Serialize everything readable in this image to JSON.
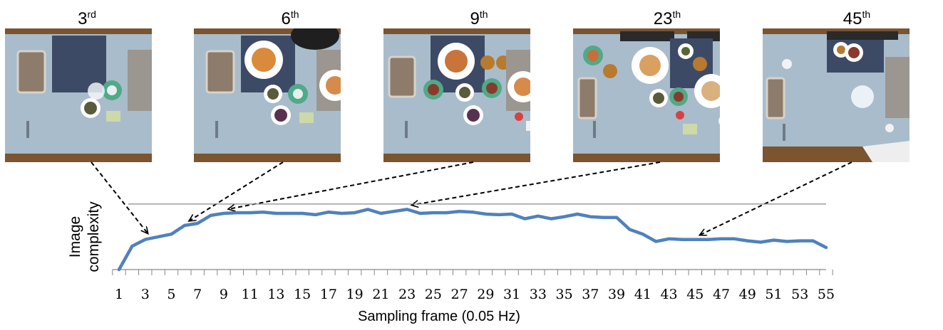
{
  "frames": [
    {
      "num": "3",
      "suffix": "rd",
      "frame": 3
    },
    {
      "num": "6",
      "suffix": "th",
      "frame": 6
    },
    {
      "num": "9",
      "suffix": "th",
      "frame": 9
    },
    {
      "num": "23",
      "suffix": "th",
      "frame": 23
    },
    {
      "num": "45",
      "suffix": "th",
      "frame": 45
    }
  ],
  "colors": {
    "line": "#4f81bd",
    "wood": "#7a5530",
    "table": "#a9bccb"
  },
  "chart_data": {
    "type": "line",
    "ylabel_line1": "Image",
    "ylabel_line2": "complexity",
    "xlabel": "Sampling frame (0.05 Hz)",
    "x_tick_labels": [
      "1",
      "3",
      "5",
      "7",
      "9",
      "11",
      "13",
      "15",
      "17",
      "19",
      "21",
      "23",
      "25",
      "27",
      "29",
      "31",
      "33",
      "35",
      "37",
      "39",
      "41",
      "43",
      "45",
      "47",
      "49",
      "51",
      "53",
      "55"
    ],
    "xlim": [
      1,
      55
    ],
    "ylim": [
      0,
      1
    ],
    "reference_line": 0.98,
    "series": [
      {
        "x": [
          1,
          2,
          3,
          4,
          5,
          6,
          7,
          8,
          9,
          10,
          11,
          12,
          13,
          14,
          15,
          16,
          17,
          18,
          19,
          20,
          21,
          22,
          23,
          24,
          25,
          26,
          27,
          28,
          29,
          30,
          31,
          32,
          33,
          34,
          35,
          36,
          37,
          38,
          39,
          40,
          41,
          42,
          43,
          44,
          45,
          46,
          47,
          48,
          49,
          50,
          51,
          52,
          53,
          54,
          55
        ],
        "y": [
          0.0,
          0.35,
          0.45,
          0.49,
          0.53,
          0.66,
          0.69,
          0.81,
          0.84,
          0.85,
          0.85,
          0.86,
          0.84,
          0.84,
          0.84,
          0.82,
          0.86,
          0.84,
          0.85,
          0.9,
          0.84,
          0.87,
          0.9,
          0.84,
          0.85,
          0.85,
          0.87,
          0.86,
          0.83,
          0.82,
          0.83,
          0.76,
          0.8,
          0.76,
          0.79,
          0.83,
          0.79,
          0.78,
          0.78,
          0.6,
          0.53,
          0.42,
          0.46,
          0.45,
          0.45,
          0.45,
          0.46,
          0.46,
          0.43,
          0.41,
          0.44,
          0.42,
          0.43,
          0.43,
          0.33
        ]
      }
    ]
  }
}
